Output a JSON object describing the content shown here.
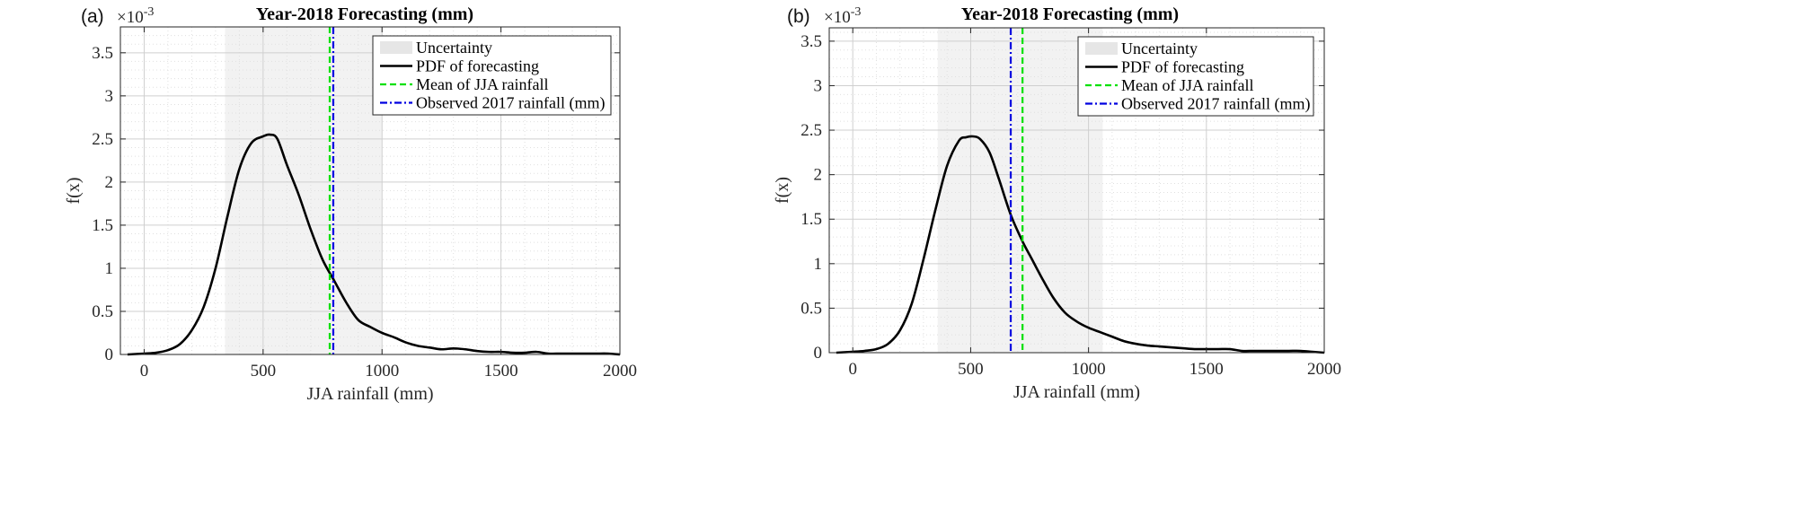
{
  "chart_data": [
    {
      "type": "line",
      "panel_label": "(a)",
      "title": "Year-2018 Forecasting (mm)",
      "xlabel": "JJA rainfall (mm)",
      "ylabel": "f(x)",
      "y_exponent_label": "×10",
      "y_exponent": "-3",
      "xlim": [
        -100,
        2000
      ],
      "ylim": [
        0,
        3.8
      ],
      "xticks": [
        0,
        500,
        1000,
        1500,
        2000
      ],
      "xtick_labels": [
        "0",
        "500",
        "1000",
        "1500",
        "2000"
      ],
      "yticks": [
        0,
        0.5,
        1,
        1.5,
        2,
        2.5,
        3,
        3.5
      ],
      "ytick_labels": [
        "0",
        "0.5",
        "1",
        "1.5",
        "2",
        "2.5",
        "3",
        "3.5"
      ],
      "grid": true,
      "uncertainty_range": [
        340,
        1000
      ],
      "mean_jja_rainfall": 780,
      "observed_2017_rainfall": 795,
      "legend_position": "top-right",
      "legend": [
        "Uncertainty",
        "PDF of forecasting",
        "Mean of JJA rainfall",
        "Observed 2017 rainfall (mm)"
      ],
      "series": [
        {
          "name": "PDF of forecasting",
          "x": [
            -70,
            0,
            50,
            100,
            150,
            200,
            250,
            300,
            350,
            400,
            450,
            500,
            530,
            560,
            600,
            650,
            700,
            750,
            800,
            850,
            900,
            950,
            1000,
            1050,
            1100,
            1150,
            1200,
            1250,
            1300,
            1350,
            1400,
            1450,
            1500,
            1550,
            1600,
            1650,
            1700,
            1750,
            1800,
            1850,
            1900,
            1950,
            2000
          ],
          "y": [
            0,
            0.01,
            0.02,
            0.05,
            0.12,
            0.28,
            0.55,
            1.0,
            1.6,
            2.15,
            2.45,
            2.53,
            2.55,
            2.5,
            2.2,
            1.85,
            1.45,
            1.1,
            0.85,
            0.6,
            0.4,
            0.32,
            0.25,
            0.2,
            0.14,
            0.1,
            0.08,
            0.06,
            0.07,
            0.06,
            0.04,
            0.03,
            0.03,
            0.02,
            0.02,
            0.03,
            0.01,
            0.01,
            0.01,
            0.01,
            0.01,
            0.01,
            0.0
          ]
        }
      ]
    },
    {
      "type": "line",
      "panel_label": "(b)",
      "title": "Year-2018 Forecasting (mm)",
      "xlabel": "JJA rainfall (mm)",
      "ylabel": "f(x)",
      "y_exponent_label": "×10",
      "y_exponent": "-3",
      "xlim": [
        -100,
        2000
      ],
      "ylim": [
        0,
        3.65
      ],
      "xticks": [
        0,
        500,
        1000,
        1500,
        2000
      ],
      "xtick_labels": [
        "0",
        "500",
        "1000",
        "1500",
        "2000"
      ],
      "yticks": [
        0,
        0.5,
        1,
        1.5,
        2,
        2.5,
        3,
        3.5
      ],
      "ytick_labels": [
        "0",
        "0.5",
        "1",
        "1.5",
        "2",
        "2.5",
        "3",
        "3.5"
      ],
      "grid": true,
      "uncertainty_range": [
        360,
        1060
      ],
      "mean_jja_rainfall": 720,
      "observed_2017_rainfall": 670,
      "legend_position": "top-right",
      "legend": [
        "Uncertainty",
        "PDF of forecasting",
        "Mean of JJA rainfall",
        "Observed 2017 rainfall (mm)"
      ],
      "series": [
        {
          "name": "PDF of forecasting",
          "x": [
            -70,
            0,
            50,
            100,
            150,
            200,
            250,
            300,
            350,
            400,
            450,
            480,
            510,
            540,
            580,
            620,
            670,
            720,
            760,
            800,
            850,
            900,
            950,
            1000,
            1050,
            1100,
            1150,
            1200,
            1250,
            1300,
            1350,
            1400,
            1450,
            1500,
            1550,
            1600,
            1650,
            1700,
            1750,
            1800,
            1850,
            1900,
            1950,
            2000
          ],
          "y": [
            0,
            0.01,
            0.02,
            0.04,
            0.1,
            0.25,
            0.55,
            1.05,
            1.6,
            2.1,
            2.38,
            2.42,
            2.43,
            2.4,
            2.25,
            1.95,
            1.55,
            1.25,
            1.05,
            0.85,
            0.62,
            0.45,
            0.35,
            0.28,
            0.23,
            0.18,
            0.13,
            0.1,
            0.08,
            0.07,
            0.06,
            0.05,
            0.04,
            0.04,
            0.04,
            0.04,
            0.02,
            0.02,
            0.02,
            0.02,
            0.02,
            0.02,
            0.01,
            0.0
          ]
        }
      ]
    }
  ]
}
